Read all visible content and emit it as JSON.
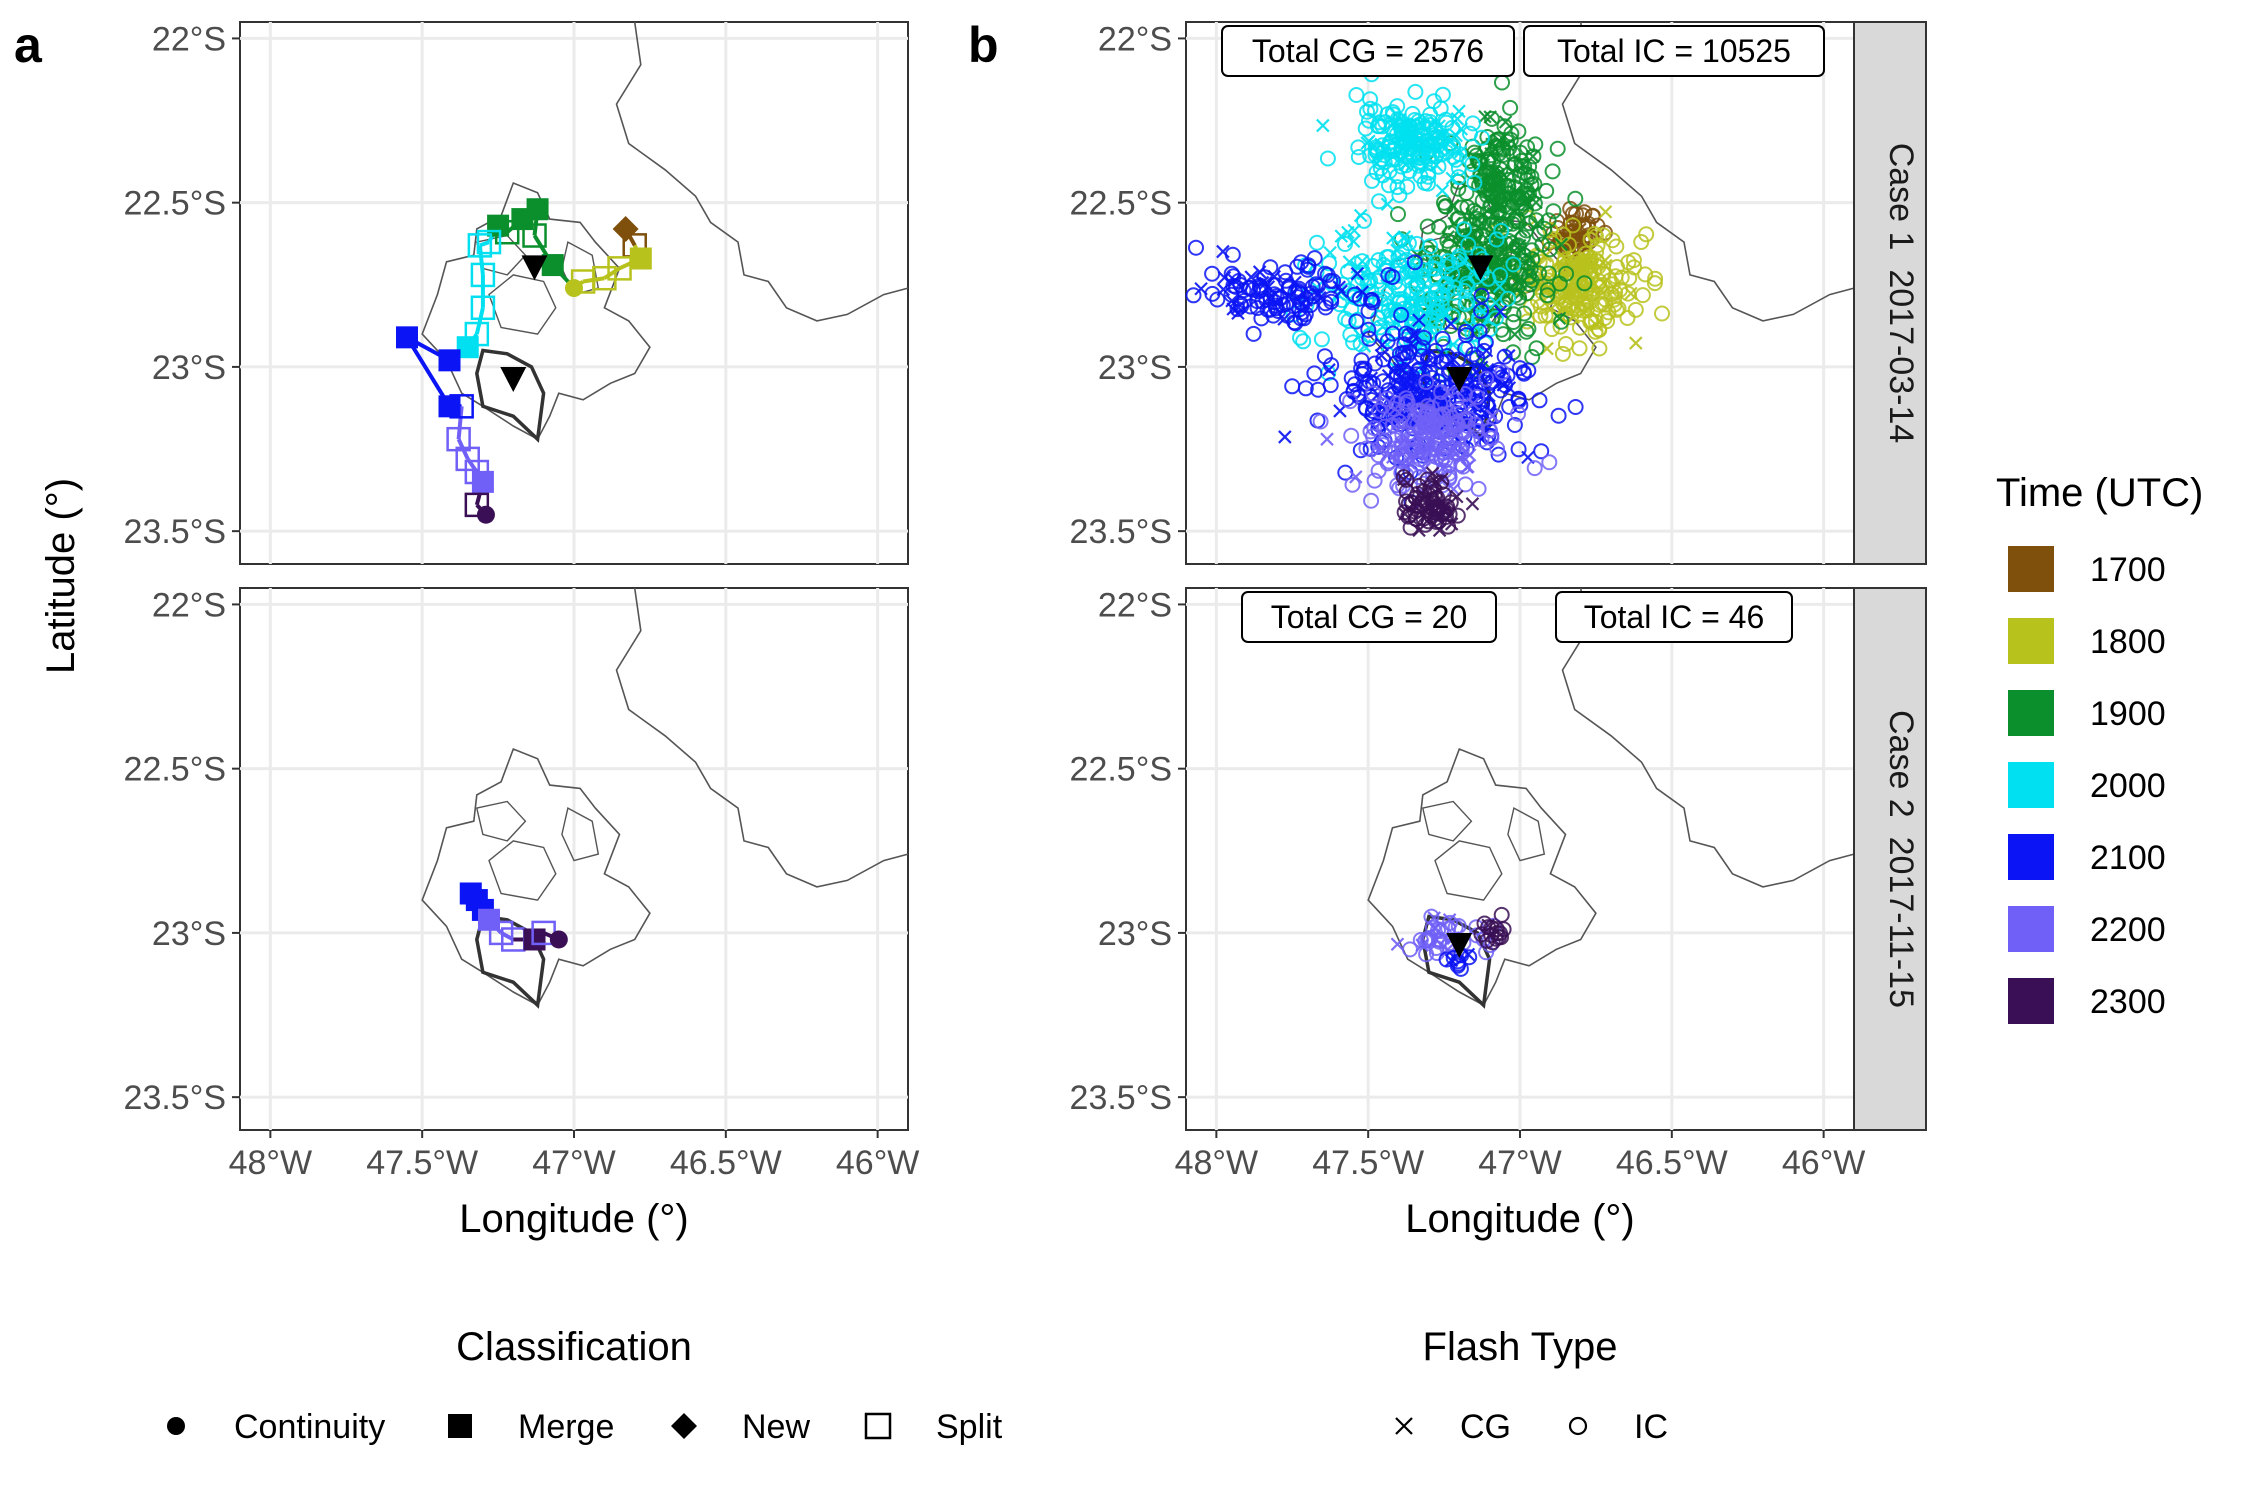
{
  "figure": {
    "panel_labels": [
      "a",
      "b"
    ],
    "x_axis_title": "Longitude (°)",
    "y_axis_title": "Latitude (°)",
    "x_ticks": [
      {
        "value": -48.0,
        "label": "48°W"
      },
      {
        "value": -47.5,
        "label": "47.5°W"
      },
      {
        "value": -47.0,
        "label": "47°W"
      },
      {
        "value": -46.5,
        "label": "46.5°W"
      },
      {
        "value": -46.0,
        "label": "46°W"
      }
    ],
    "y_ticks": [
      {
        "value": -22.0,
        "label": "22°S"
      },
      {
        "value": -22.5,
        "label": "22.5°S"
      },
      {
        "value": -23.0,
        "label": "23°S"
      },
      {
        "value": -23.5,
        "label": "23.5°S"
      }
    ],
    "facet_strips": [
      "Case 1  2017-03-14",
      "Case 2  2017-11-15"
    ],
    "totals": {
      "case1": {
        "cg": "Total CG = 2576",
        "ic": "Total IC = 10525"
      },
      "case2": {
        "cg": "Total CG = 20",
        "ic": "Total IC = 46"
      }
    }
  },
  "legend_time": {
    "title": "Time (UTC)",
    "entries": [
      {
        "label": "1700",
        "color": "#7f4f0c"
      },
      {
        "label": "1800",
        "color": "#b8c21d"
      },
      {
        "label": "1900",
        "color": "#0a8f2c"
      },
      {
        "label": "2000",
        "color": "#00e0f0"
      },
      {
        "label": "2100",
        "color": "#0a14f5"
      },
      {
        "label": "2200",
        "color": "#7060f7"
      },
      {
        "label": "2300",
        "color": "#3a0f55"
      }
    ]
  },
  "legend_classification": {
    "title": "Classification",
    "entries": [
      {
        "label": "Continuity",
        "shape": "circle"
      },
      {
        "label": "Merge",
        "shape": "square-filled"
      },
      {
        "label": "New",
        "shape": "diamond"
      },
      {
        "label": "Split",
        "shape": "square-open"
      }
    ]
  },
  "legend_flash": {
    "title": "Flash Type",
    "entries": [
      {
        "label": "CG",
        "shape": "cross"
      },
      {
        "label": "IC",
        "shape": "circle-open"
      }
    ]
  },
  "chart_data": [
    {
      "type": "scatter",
      "panel": "a",
      "case": "Case 1  2017-03-14",
      "xlim": [
        -48.1,
        -45.9
      ],
      "ylim": [
        -23.6,
        -21.95
      ],
      "radar_markers": [
        {
          "lon": -47.13,
          "lat": -22.7
        },
        {
          "lon": -47.2,
          "lat": -23.04
        }
      ],
      "track": [
        {
          "lon": -46.83,
          "lat": -22.58,
          "time": 1700,
          "cls": "New"
        },
        {
          "lon": -46.8,
          "lat": -22.63,
          "time": 1700,
          "cls": "Split"
        },
        {
          "lon": -46.78,
          "lat": -22.67,
          "time": 1800,
          "cls": "Merge"
        },
        {
          "lon": -46.85,
          "lat": -22.7,
          "time": 1800,
          "cls": "Split"
        },
        {
          "lon": -46.9,
          "lat": -22.73,
          "time": 1800,
          "cls": "Split"
        },
        {
          "lon": -46.97,
          "lat": -22.74,
          "time": 1800,
          "cls": "Split"
        },
        {
          "lon": -47.0,
          "lat": -22.76,
          "time": 1800,
          "cls": "Continuity"
        },
        {
          "lon": -47.07,
          "lat": -22.69,
          "time": 1900,
          "cls": "Merge"
        },
        {
          "lon": -47.13,
          "lat": -22.6,
          "time": 1900,
          "cls": "Split"
        },
        {
          "lon": -47.12,
          "lat": -22.52,
          "time": 1900,
          "cls": "Merge"
        },
        {
          "lon": -47.17,
          "lat": -22.55,
          "time": 1900,
          "cls": "Merge"
        },
        {
          "lon": -47.22,
          "lat": -22.59,
          "time": 1900,
          "cls": "Split"
        },
        {
          "lon": -47.25,
          "lat": -22.57,
          "time": 1900,
          "cls": "Merge"
        },
        {
          "lon": -47.28,
          "lat": -22.62,
          "time": 2000,
          "cls": "Split"
        },
        {
          "lon": -47.31,
          "lat": -22.63,
          "time": 2000,
          "cls": "Split"
        },
        {
          "lon": -47.3,
          "lat": -22.72,
          "time": 2000,
          "cls": "Split"
        },
        {
          "lon": -47.3,
          "lat": -22.82,
          "time": 2000,
          "cls": "Split"
        },
        {
          "lon": -47.32,
          "lat": -22.9,
          "time": 2000,
          "cls": "Split"
        },
        {
          "lon": -47.35,
          "lat": -22.94,
          "time": 2000,
          "cls": "Merge"
        },
        {
          "lon": -47.41,
          "lat": -22.98,
          "time": 2100,
          "cls": "Merge"
        },
        {
          "lon": -47.55,
          "lat": -22.91,
          "time": 2100,
          "cls": "Merge"
        },
        {
          "lon": -47.41,
          "lat": -23.12,
          "time": 2100,
          "cls": "Merge"
        },
        {
          "lon": -47.37,
          "lat": -23.12,
          "time": 2100,
          "cls": "Split"
        },
        {
          "lon": -47.38,
          "lat": -23.22,
          "time": 2200,
          "cls": "Split"
        },
        {
          "lon": -47.35,
          "lat": -23.28,
          "time": 2200,
          "cls": "Split"
        },
        {
          "lon": -47.32,
          "lat": -23.32,
          "time": 2200,
          "cls": "Split"
        },
        {
          "lon": -47.3,
          "lat": -23.35,
          "time": 2200,
          "cls": "Merge"
        },
        {
          "lon": -47.32,
          "lat": -23.42,
          "time": 2300,
          "cls": "Split"
        },
        {
          "lon": -47.29,
          "lat": -23.45,
          "time": 2300,
          "cls": "Continuity"
        }
      ]
    },
    {
      "type": "scatter",
      "panel": "a",
      "case": "Case 2  2017-11-15",
      "xlim": [
        -48.1,
        -45.9
      ],
      "ylim": [
        -23.6,
        -21.95
      ],
      "track": [
        {
          "lon": -47.34,
          "lat": -22.88,
          "time": 2100,
          "cls": "Merge"
        },
        {
          "lon": -47.32,
          "lat": -22.9,
          "time": 2100,
          "cls": "Merge"
        },
        {
          "lon": -47.3,
          "lat": -22.93,
          "time": 2100,
          "cls": "Merge"
        },
        {
          "lon": -47.28,
          "lat": -22.96,
          "time": 2200,
          "cls": "Merge"
        },
        {
          "lon": -47.24,
          "lat": -23.0,
          "time": 2200,
          "cls": "Split"
        },
        {
          "lon": -47.2,
          "lat": -23.02,
          "time": 2200,
          "cls": "Split"
        },
        {
          "lon": -47.13,
          "lat": -23.02,
          "time": 2300,
          "cls": "Merge"
        },
        {
          "lon": -47.1,
          "lat": -23.0,
          "time": 2200,
          "cls": "Split"
        },
        {
          "lon": -47.05,
          "lat": -23.02,
          "time": 2300,
          "cls": "Continuity"
        }
      ]
    },
    {
      "type": "scatter",
      "panel": "b",
      "case": "Case 1  2017-03-14",
      "xlim": [
        -48.1,
        -45.9
      ],
      "ylim": [
        -23.6,
        -21.95
      ],
      "flash_clusters": [
        {
          "time": 1700,
          "lon": -46.82,
          "lat": -22.6,
          "sd_lon": 0.04,
          "sd_lat": 0.04,
          "n": 60
        },
        {
          "time": 1800,
          "lon": -46.82,
          "lat": -22.75,
          "sd_lon": 0.1,
          "sd_lat": 0.08,
          "n": 220
        },
        {
          "time": 1900,
          "lon": -47.08,
          "lat": -22.45,
          "sd_lon": 0.08,
          "sd_lat": 0.1,
          "n": 200
        },
        {
          "time": 1900,
          "lon": -47.12,
          "lat": -22.72,
          "sd_lon": 0.12,
          "sd_lat": 0.09,
          "n": 240
        },
        {
          "time": 2000,
          "lon": -47.35,
          "lat": -22.32,
          "sd_lon": 0.09,
          "sd_lat": 0.06,
          "n": 200
        },
        {
          "time": 2000,
          "lon": -47.35,
          "lat": -22.78,
          "sd_lon": 0.15,
          "sd_lat": 0.1,
          "n": 240
        },
        {
          "time": 2100,
          "lon": -47.8,
          "lat": -22.78,
          "sd_lon": 0.18,
          "sd_lat": 0.05,
          "n": 130
        },
        {
          "time": 2100,
          "lon": -47.3,
          "lat": -23.08,
          "sd_lon": 0.17,
          "sd_lat": 0.1,
          "n": 320
        },
        {
          "time": 2200,
          "lon": -47.3,
          "lat": -23.22,
          "sd_lon": 0.12,
          "sd_lat": 0.07,
          "n": 200
        },
        {
          "time": 2300,
          "lon": -47.3,
          "lat": -23.42,
          "sd_lon": 0.04,
          "sd_lat": 0.04,
          "n": 80
        }
      ],
      "radar_markers": [
        {
          "lon": -47.13,
          "lat": -22.7
        },
        {
          "lon": -47.2,
          "lat": -23.04
        }
      ]
    },
    {
      "type": "scatter",
      "panel": "b",
      "case": "Case 2  2017-11-15",
      "xlim": [
        -48.1,
        -45.9
      ],
      "ylim": [
        -23.6,
        -21.95
      ],
      "flash_clusters": [
        {
          "time": 2200,
          "lon": -47.25,
          "lat": -23.02,
          "sd_lon": 0.07,
          "sd_lat": 0.03,
          "n": 40
        },
        {
          "time": 2300,
          "lon": -47.08,
          "lat": -22.99,
          "sd_lon": 0.03,
          "sd_lat": 0.02,
          "n": 16
        },
        {
          "time": 2100,
          "lon": -47.22,
          "lat": -23.08,
          "sd_lon": 0.03,
          "sd_lat": 0.02,
          "n": 10
        }
      ],
      "radar_markers": [
        {
          "lon": -47.2,
          "lat": -23.04
        }
      ]
    }
  ]
}
